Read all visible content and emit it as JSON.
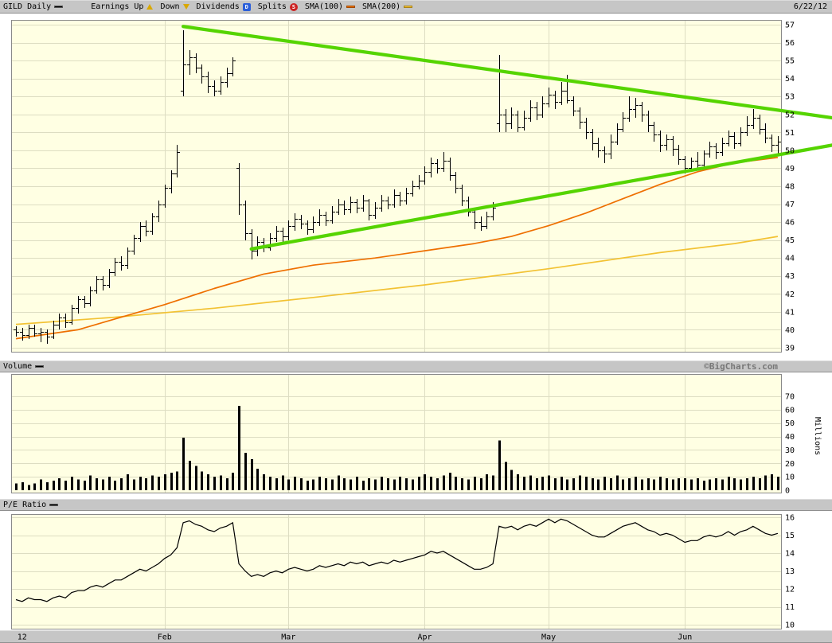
{
  "header": {
    "title": "GILD Daily",
    "legend": {
      "earnings_up": "Earnings Up",
      "down": "Down",
      "dividends": "Dividends",
      "dividend_badge": "D",
      "splits": "Splits",
      "split_badge": "S",
      "sma100": "SMA(100)",
      "sma200": "SMA(200)"
    },
    "date": "6/22/12"
  },
  "panels": {
    "volume_label": "Volume",
    "pe_label": "P/E Ratio",
    "copyright": "©BigCharts.com"
  },
  "colors": {
    "chrome_bg": "#c6c6c6",
    "plot_bg": "#ffffe3",
    "plot_border": "#8a8a8a",
    "grid": "#ddddc2",
    "bar": "#000000",
    "sma100": "#ee6f00",
    "sma200": "#f2c233",
    "trendline": "#55d400",
    "up_triangle": "#d9a800",
    "dividend_badge": "#2b5fd9",
    "split_badge": "#cc2222"
  },
  "chart_data": {
    "type": "ohlc-multi-panel",
    "symbol": "GILD",
    "frequency": "Daily",
    "as_of": "6/22/12",
    "day_count": 124,
    "x_axis": {
      "labels": [
        "12",
        "Feb",
        "Mar",
        "Apr",
        "May",
        "Jun"
      ],
      "day_index": [
        1,
        24,
        44,
        66,
        86,
        108
      ]
    },
    "price_panel": {
      "type": "ohlc",
      "ylim": [
        39,
        57
      ],
      "y_ticks": [
        39,
        40,
        41,
        42,
        43,
        44,
        45,
        46,
        47,
        48,
        49,
        50,
        51,
        52,
        53,
        54,
        55,
        56,
        57
      ],
      "bars": [
        [
          40.0,
          40.2,
          39.6,
          39.9
        ],
        [
          39.9,
          40.1,
          39.4,
          39.7
        ],
        [
          39.7,
          40.3,
          39.5,
          40.1
        ],
        [
          40.1,
          40.3,
          39.6,
          39.8
        ],
        [
          39.8,
          40.1,
          39.3,
          39.9
        ],
        [
          39.9,
          40.0,
          39.2,
          39.6
        ],
        [
          39.6,
          40.5,
          39.5,
          40.3
        ],
        [
          40.3,
          40.9,
          40.0,
          40.7
        ],
        [
          40.7,
          40.9,
          40.1,
          40.4
        ],
        [
          40.4,
          41.4,
          40.3,
          41.2
        ],
        [
          41.2,
          41.9,
          40.9,
          41.7
        ],
        [
          41.7,
          41.9,
          41.2,
          41.5
        ],
        [
          41.5,
          42.4,
          41.3,
          42.2
        ],
        [
          42.2,
          43.0,
          42.0,
          42.8
        ],
        [
          42.8,
          43.0,
          42.2,
          42.5
        ],
        [
          42.5,
          43.4,
          42.3,
          43.2
        ],
        [
          43.2,
          44.0,
          43.0,
          43.8
        ],
        [
          43.8,
          44.1,
          43.3,
          43.6
        ],
        [
          43.6,
          44.6,
          43.4,
          44.4
        ],
        [
          44.4,
          45.3,
          44.2,
          45.1
        ],
        [
          45.1,
          46.0,
          44.9,
          45.8
        ],
        [
          45.8,
          46.1,
          45.2,
          45.5
        ],
        [
          45.5,
          46.5,
          45.3,
          46.3
        ],
        [
          46.3,
          47.2,
          46.0,
          47.0
        ],
        [
          47.0,
          48.1,
          46.8,
          47.9
        ],
        [
          47.9,
          48.9,
          47.6,
          48.7
        ],
        [
          48.7,
          50.3,
          48.5,
          49.9
        ],
        [
          53.3,
          56.7,
          53.0,
          54.8
        ],
        [
          54.8,
          55.6,
          54.2,
          55.2
        ],
        [
          55.2,
          55.4,
          54.3,
          54.6
        ],
        [
          54.6,
          54.8,
          53.7,
          54.1
        ],
        [
          54.1,
          54.4,
          53.2,
          53.6
        ],
        [
          53.6,
          53.9,
          53.0,
          53.3
        ],
        [
          53.3,
          54.1,
          53.1,
          53.8
        ],
        [
          53.8,
          54.6,
          53.5,
          54.3
        ],
        [
          54.3,
          55.2,
          54.1,
          55.0
        ],
        [
          49.0,
          49.3,
          46.4,
          47.0
        ],
        [
          47.0,
          47.2,
          45.0,
          45.4
        ],
        [
          45.4,
          45.6,
          43.9,
          44.4
        ],
        [
          44.4,
          45.2,
          44.1,
          44.9
        ],
        [
          44.9,
          45.1,
          44.3,
          44.6
        ],
        [
          44.6,
          45.4,
          44.4,
          45.1
        ],
        [
          45.1,
          45.8,
          44.9,
          45.5
        ],
        [
          45.5,
          45.7,
          44.9,
          45.2
        ],
        [
          45.2,
          46.1,
          45.0,
          45.8
        ],
        [
          45.8,
          46.5,
          45.5,
          46.2
        ],
        [
          46.2,
          46.4,
          45.6,
          45.9
        ],
        [
          45.9,
          46.1,
          45.3,
          45.6
        ],
        [
          45.6,
          46.3,
          45.4,
          46.0
        ],
        [
          46.0,
          46.7,
          45.8,
          46.4
        ],
        [
          46.4,
          46.6,
          45.8,
          46.1
        ],
        [
          46.1,
          46.9,
          45.9,
          46.6
        ],
        [
          46.6,
          47.3,
          46.4,
          47.0
        ],
        [
          47.0,
          47.2,
          46.4,
          46.7
        ],
        [
          46.7,
          47.4,
          46.5,
          47.1
        ],
        [
          47.1,
          47.3,
          46.5,
          46.8
        ],
        [
          46.8,
          47.5,
          46.6,
          47.2
        ],
        [
          47.2,
          47.3,
          46.1,
          46.4
        ],
        [
          46.4,
          47.1,
          46.2,
          46.8
        ],
        [
          46.8,
          47.5,
          46.6,
          47.2
        ],
        [
          47.2,
          47.4,
          46.7,
          47.0
        ],
        [
          47.0,
          47.8,
          46.8,
          47.5
        ],
        [
          47.5,
          47.7,
          46.9,
          47.2
        ],
        [
          47.2,
          47.9,
          47.0,
          47.6
        ],
        [
          47.6,
          48.3,
          47.4,
          48.0
        ],
        [
          48.0,
          48.6,
          47.8,
          48.3
        ],
        [
          48.3,
          49.1,
          48.1,
          48.8
        ],
        [
          48.8,
          49.6,
          48.5,
          49.3
        ],
        [
          49.3,
          49.5,
          48.7,
          49.0
        ],
        [
          49.0,
          49.9,
          48.8,
          49.4
        ],
        [
          49.4,
          49.6,
          48.3,
          48.6
        ],
        [
          48.6,
          48.8,
          47.6,
          47.9
        ],
        [
          47.9,
          48.1,
          46.9,
          47.2
        ],
        [
          47.2,
          47.4,
          46.3,
          46.6
        ],
        [
          46.6,
          46.8,
          45.6,
          46.0
        ],
        [
          46.0,
          46.3,
          45.5,
          45.8
        ],
        [
          45.8,
          46.6,
          45.6,
          46.3
        ],
        [
          46.3,
          47.1,
          46.1,
          46.8
        ],
        [
          51.5,
          55.3,
          51.0,
          52.0
        ],
        [
          52.0,
          52.3,
          51.0,
          51.5
        ],
        [
          51.5,
          52.4,
          51.2,
          52.0
        ],
        [
          52.0,
          52.2,
          51.0,
          51.3
        ],
        [
          51.3,
          52.2,
          51.1,
          51.8
        ],
        [
          51.8,
          52.8,
          51.6,
          52.4
        ],
        [
          52.4,
          52.7,
          51.7,
          52.0
        ],
        [
          52.0,
          53.0,
          51.8,
          52.6
        ],
        [
          52.6,
          53.5,
          52.4,
          53.1
        ],
        [
          53.1,
          53.3,
          52.3,
          52.7
        ],
        [
          52.7,
          53.8,
          52.5,
          53.3
        ],
        [
          53.3,
          54.2,
          52.6,
          52.8
        ],
        [
          52.8,
          53.0,
          51.9,
          52.2
        ],
        [
          52.2,
          52.4,
          51.2,
          51.6
        ],
        [
          51.6,
          51.8,
          50.6,
          51.0
        ],
        [
          51.0,
          51.2,
          50.0,
          50.4
        ],
        [
          50.4,
          50.7,
          49.6,
          50.0
        ],
        [
          50.0,
          50.2,
          49.3,
          49.8
        ],
        [
          49.8,
          50.9,
          49.5,
          50.5
        ],
        [
          50.5,
          51.5,
          50.3,
          51.2
        ],
        [
          51.2,
          52.1,
          51.0,
          51.8
        ],
        [
          51.8,
          53.0,
          51.6,
          52.3
        ],
        [
          52.3,
          52.9,
          51.8,
          52.5
        ],
        [
          52.5,
          52.7,
          51.6,
          52.0
        ],
        [
          52.0,
          52.2,
          51.0,
          51.4
        ],
        [
          51.4,
          51.6,
          50.5,
          50.9
        ],
        [
          50.9,
          51.1,
          49.9,
          50.3
        ],
        [
          50.3,
          50.9,
          50.0,
          50.6
        ],
        [
          50.6,
          50.8,
          49.7,
          50.1
        ],
        [
          50.1,
          50.3,
          49.2,
          49.5
        ],
        [
          49.5,
          49.7,
          48.7,
          49.0
        ],
        [
          49.0,
          49.6,
          48.8,
          49.4
        ],
        [
          49.4,
          49.9,
          49.0,
          49.2
        ],
        [
          49.2,
          50.0,
          49.0,
          49.8
        ],
        [
          49.8,
          50.5,
          49.6,
          50.2
        ],
        [
          50.2,
          50.4,
          49.5,
          49.9
        ],
        [
          49.9,
          50.7,
          49.7,
          50.4
        ],
        [
          50.4,
          51.1,
          50.2,
          50.8
        ],
        [
          50.8,
          51.0,
          50.1,
          50.4
        ],
        [
          50.4,
          51.3,
          50.2,
          51.0
        ],
        [
          51.0,
          51.9,
          50.8,
          51.4
        ],
        [
          51.4,
          52.3,
          51.2,
          51.8
        ],
        [
          51.8,
          52.0,
          50.9,
          51.2
        ],
        [
          51.2,
          51.5,
          50.4,
          50.7
        ],
        [
          50.7,
          50.9,
          49.9,
          50.3
        ],
        [
          50.3,
          50.8,
          49.8,
          50.5
        ]
      ],
      "sma100": {
        "label": "SMA(100)",
        "color": "#ee6f00",
        "points": [
          [
            0,
            39.5
          ],
          [
            10,
            40.0
          ],
          [
            16,
            40.6
          ],
          [
            24,
            41.4
          ],
          [
            32,
            42.3
          ],
          [
            40,
            43.1
          ],
          [
            48,
            43.6
          ],
          [
            58,
            44.0
          ],
          [
            66,
            44.4
          ],
          [
            74,
            44.8
          ],
          [
            80,
            45.2
          ],
          [
            86,
            45.8
          ],
          [
            92,
            46.5
          ],
          [
            98,
            47.3
          ],
          [
            104,
            48.1
          ],
          [
            110,
            48.8
          ],
          [
            116,
            49.3
          ],
          [
            123,
            49.6
          ]
        ]
      },
      "sma200": {
        "label": "SMA(200)",
        "color": "#f2c233",
        "points": [
          [
            0,
            40.3
          ],
          [
            16,
            40.7
          ],
          [
            32,
            41.2
          ],
          [
            48,
            41.8
          ],
          [
            66,
            42.5
          ],
          [
            86,
            43.4
          ],
          [
            104,
            44.3
          ],
          [
            116,
            44.8
          ],
          [
            123,
            45.2
          ]
        ]
      },
      "trendlines": [
        {
          "name": "descending-resistance",
          "from": [
            27,
            56.9
          ],
          "to": [
            132,
            51.8
          ]
        },
        {
          "name": "ascending-support",
          "from": [
            38,
            44.5
          ],
          "to": [
            132,
            50.3
          ]
        }
      ]
    },
    "volume_panel": {
      "type": "bar",
      "label": "Volume",
      "unit": "Millions",
      "ylim": [
        0,
        85
      ],
      "y_ticks": [
        0,
        10,
        20,
        30,
        40,
        50,
        60,
        70
      ],
      "values": [
        5,
        6,
        4,
        5,
        8,
        6,
        7,
        9,
        7,
        10,
        8,
        7,
        11,
        9,
        8,
        10,
        7,
        9,
        12,
        8,
        10,
        9,
        11,
        10,
        12,
        13,
        14,
        39,
        22,
        18,
        14,
        12,
        10,
        11,
        9,
        13,
        63,
        28,
        23,
        16,
        12,
        10,
        9,
        11,
        8,
        10,
        9,
        7,
        8,
        10,
        9,
        8,
        11,
        9,
        8,
        10,
        7,
        9,
        8,
        10,
        9,
        8,
        10,
        9,
        8,
        10,
        12,
        10,
        9,
        11,
        13,
        10,
        9,
        8,
        10,
        9,
        12,
        11,
        37,
        21,
        15,
        12,
        10,
        11,
        9,
        10,
        11,
        9,
        10,
        8,
        9,
        11,
        10,
        9,
        8,
        10,
        9,
        11,
        8,
        9,
        10,
        8,
        9,
        8,
        10,
        9,
        8,
        9,
        9,
        8,
        9,
        7,
        8,
        9,
        8,
        10,
        9,
        8,
        9,
        10,
        9,
        11,
        12,
        10
      ]
    },
    "pe_panel": {
      "type": "line",
      "label": "P/E Ratio",
      "ylim": [
        10,
        16.2
      ],
      "y_ticks": [
        10,
        11,
        12,
        13,
        14,
        15,
        16
      ],
      "values": [
        11.4,
        11.3,
        11.5,
        11.4,
        11.4,
        11.3,
        11.5,
        11.6,
        11.5,
        11.8,
        11.9,
        11.9,
        12.1,
        12.2,
        12.1,
        12.3,
        12.5,
        12.5,
        12.7,
        12.9,
        13.1,
        13.0,
        13.2,
        13.4,
        13.7,
        13.9,
        14.3,
        15.7,
        15.8,
        15.6,
        15.5,
        15.3,
        15.2,
        15.4,
        15.5,
        15.7,
        13.4,
        13.0,
        12.7,
        12.8,
        12.7,
        12.9,
        13.0,
        12.9,
        13.1,
        13.2,
        13.1,
        13.0,
        13.1,
        13.3,
        13.2,
        13.3,
        13.4,
        13.3,
        13.5,
        13.4,
        13.5,
        13.3,
        13.4,
        13.5,
        13.4,
        13.6,
        13.5,
        13.6,
        13.7,
        13.8,
        13.9,
        14.1,
        14.0,
        14.1,
        13.9,
        13.7,
        13.5,
        13.3,
        13.1,
        13.1,
        13.2,
        13.4,
        15.5,
        15.4,
        15.5,
        15.3,
        15.5,
        15.6,
        15.5,
        15.7,
        15.9,
        15.7,
        15.9,
        15.8,
        15.6,
        15.4,
        15.2,
        15.0,
        14.9,
        14.9,
        15.1,
        15.3,
        15.5,
        15.6,
        15.7,
        15.5,
        15.3,
        15.2,
        15.0,
        15.1,
        15.0,
        14.8,
        14.6,
        14.7,
        14.7,
        14.9,
        15.0,
        14.9,
        15.0,
        15.2,
        15.0,
        15.2,
        15.3,
        15.5,
        15.3,
        15.1,
        15.0,
        15.1
      ]
    }
  }
}
